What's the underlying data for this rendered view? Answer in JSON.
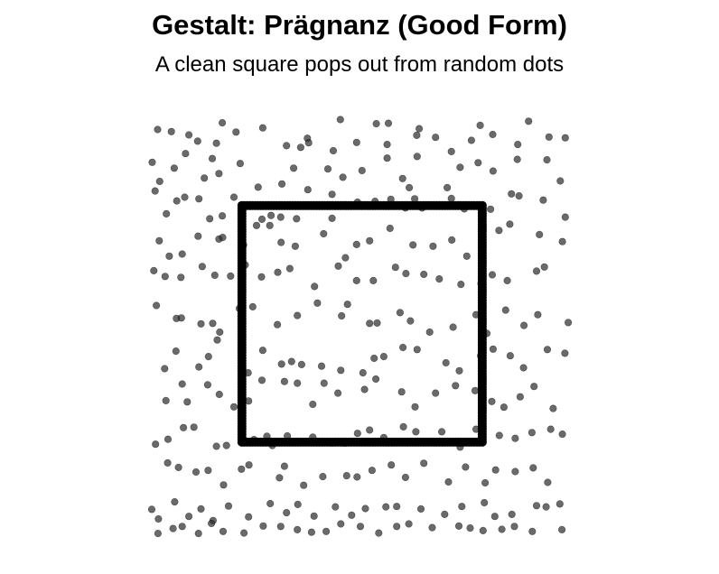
{
  "header": {
    "title": "Gestalt: Prägnanz (Good Form)",
    "subtitle": "A clean square pops out from random dots"
  },
  "colors": {
    "noise_dot": "#2b2b2b",
    "square_dot": "#000000",
    "background": "#ffffff"
  },
  "chart_data": {
    "type": "scatter",
    "title": "Gestalt: Prägnanz (Good Form)",
    "subtitle": "A clean square pops out from random dots",
    "xlabel": "",
    "ylabel": "",
    "xlim": [
      0,
      1
    ],
    "ylim": [
      0,
      1
    ],
    "grid": false,
    "axes_visible": false,
    "series": [
      {
        "role": "noise",
        "opacity": 0.7,
        "x": [
          0.016,
          0.014,
          0.047,
          0.089,
          0.11,
          0.155,
          0.169,
          0.202,
          0.266,
          0.323,
          0.357,
          0.373,
          0.376,
          0.435,
          0.452,
          0.491,
          0.538,
          0.564,
          0.567,
          0.635,
          0.641,
          0.68,
          0.718,
          0.766,
          0.787,
          0.817,
          0.877,
          0.903,
          0.952,
          0.991,
          0.001,
          0.019,
          0.054,
          0.081,
          0.126,
          0.145,
          0.161,
          0.212,
          0.255,
          0.312,
          0.34,
          0.374,
          0.422,
          0.458,
          0.504,
          0.564,
          0.601,
          0.617,
          0.636,
          0.708,
          0.739,
          0.782,
          0.818,
          0.876,
          0.947,
          0.979,
          0.008,
          0.035,
          0.06,
          0.079,
          0.113,
          0.139,
          0.169,
          0.197,
          0.264,
          0.286,
          0.309,
          0.347,
          0.432,
          0.432,
          0.493,
          0.535,
          0.573,
          0.608,
          0.63,
          0.648,
          0.718,
          0.749,
          0.812,
          0.862,
          0.88,
          0.938,
          0.991,
          0.018,
          0.042,
          0.073,
          0.111,
          0.161,
          0.17,
          0.22,
          0.251,
          0.283,
          0.31,
          0.344,
          0.412,
          0.464,
          0.491,
          0.522,
          0.571,
          0.626,
          0.674,
          0.719,
          0.755,
          0.793,
          0.832,
          0.858,
          0.929,
          0.984,
          0.005,
          0.032,
          0.07,
          0.121,
          0.151,
          0.189,
          0.224,
          0.263,
          0.302,
          0.331,
          0.39,
          0.447,
          0.491,
          0.531,
          0.584,
          0.609,
          0.652,
          0.689,
          0.741,
          0.789,
          0.816,
          0.852,
          0.922,
          0.941,
          0.011,
          0.059,
          0.071,
          0.118,
          0.146,
          0.163,
          0.21,
          0.242,
          0.301,
          0.349,
          0.397,
          0.455,
          0.469,
          0.522,
          0.54,
          0.595,
          0.62,
          0.666,
          0.722,
          0.777,
          0.803,
          0.848,
          0.892,
          0.925,
          0.998,
          0.031,
          0.058,
          0.113,
          0.136,
          0.157,
          0.231,
          0.266,
          0.311,
          0.335,
          0.359,
          0.407,
          0.453,
          0.506,
          0.533,
          0.556,
          0.602,
          0.636,
          0.705,
          0.737,
          0.788,
          0.818,
          0.859,
          0.891,
          0.948,
          0.99,
          0.034,
          0.073,
          0.085,
          0.134,
          0.162,
          0.197,
          0.232,
          0.264,
          0.318,
          0.349,
          0.386,
          0.413,
          0.446,
          0.51,
          0.537,
          0.599,
          0.631,
          0.68,
          0.728,
          0.775,
          0.815,
          0.844,
          0.883,
          0.916,
          0.962,
          0.009,
          0.039,
          0.076,
          0.101,
          0.155,
          0.179,
          0.245,
          0.276,
          0.289,
          0.325,
          0.386,
          0.433,
          0.493,
          0.522,
          0.556,
          0.603,
          0.633,
          0.695,
          0.739,
          0.777,
          0.833,
          0.871,
          0.911,
          0.956,
          0.984,
          0.038,
          0.064,
          0.106,
          0.135,
          0.172,
          0.215,
          0.233,
          0.306,
          0.318,
          0.364,
          0.41,
          0.467,
          0.492,
          0.528,
          0.574,
          0.608,
          0.652,
          0.711,
          0.752,
          0.799,
          0.824,
          0.871,
          0.914,
          0.949,
          0.0,
          0.055,
          0.089,
          0.118,
          0.147,
          0.184,
          0.232,
          0.284,
          0.323,
          0.35,
          0.389,
          0.44,
          0.479,
          0.512,
          0.561,
          0.587,
          0.645,
          0.702,
          0.743,
          0.797,
          0.822,
          0.863,
          0.922,
          0.945,
          0.978,
          0.015,
          0.051,
          0.073,
          0.112,
          0.143,
          0.171,
          0.221,
          0.267,
          0.309,
          0.349,
          0.383,
          0.418,
          0.453,
          0.5,
          0.544,
          0.587,
          0.616,
          0.672,
          0.736,
          0.763,
          0.794,
          0.839,
          0.869,
          0.912,
          0.983
        ],
        "y": [
          0.037,
          0.975,
          0.97,
          0.962,
          0.947,
          0.942,
          0.991,
          0.969,
          0.979,
          0.936,
          0.932,
          0.954,
          0.943,
          0.924,
          0.999,
          0.944,
          0.989,
          0.939,
          0.99,
          0.961,
          0.977,
          0.956,
          0.922,
          0.949,
          0.985,
          0.963,
          0.939,
          0.995,
          0.957,
          0.955,
          0.896,
          0.85,
          0.882,
          0.917,
          0.858,
          0.905,
          0.869,
          0.893,
          0.836,
          0.844,
          0.882,
          0.83,
          0.88,
          0.86,
          0.876,
          0.906,
          0.857,
          0.835,
          0.91,
          0.835,
          0.884,
          0.895,
          0.875,
          0.903,
          0.902,
          0.851,
          0.827,
          0.772,
          0.803,
          0.812,
          0.808,
          0.76,
          0.767,
          0.812,
          0.759,
          0.768,
          0.764,
          0.76,
          0.819,
          0.761,
          0.8,
          0.802,
          0.807,
          0.786,
          0.808,
          0.786,
          0.809,
          0.784,
          0.783,
          0.82,
          0.815,
          0.805,
          0.764,
          0.707,
          0.67,
          0.675,
          0.718,
          0.711,
          0.715,
          0.697,
          0.744,
          0.744,
          0.703,
          0.694,
          0.724,
          0.666,
          0.698,
          0.707,
          0.737,
          0.697,
          0.694,
          0.709,
          0.67,
          0.7,
          0.732,
          0.747,
          0.722,
          0.705,
          0.635,
          0.621,
          0.619,
          0.645,
          0.624,
          0.622,
          0.649,
          0.62,
          0.631,
          0.64,
          0.597,
          0.646,
          0.611,
          0.611,
          0.643,
          0.628,
          0.626,
          0.615,
          0.602,
          0.604,
          0.625,
          0.611,
          0.634,
          0.644,
          0.551,
          0.52,
          0.521,
          0.507,
          0.508,
          0.487,
          0.544,
          0.548,
          0.505,
          0.527,
          0.557,
          0.526,
          0.554,
          0.508,
          0.509,
          0.534,
          0.514,
          0.487,
          0.499,
          0.529,
          0.484,
          0.54,
          0.503,
          0.529,
          0.51,
          0.399,
          0.441,
          0.403,
          0.428,
          0.468,
          0.389,
          0.443,
          0.41,
          0.416,
          0.409,
          0.405,
          0.395,
          0.389,
          0.424,
          0.428,
          0.45,
          0.445,
          0.413,
          0.394,
          0.43,
          0.446,
          0.43,
          0.401,
          0.445,
          0.436,
          0.322,
          0.362,
          0.319,
          0.36,
          0.337,
          0.307,
          0.321,
          0.371,
          0.368,
          0.364,
          0.313,
          0.364,
          0.34,
          0.349,
          0.374,
          0.343,
          0.307,
          0.34,
          0.358,
          0.346,
          0.32,
          0.306,
          0.331,
          0.356,
          0.303,
          0.217,
          0.229,
          0.257,
          0.258,
          0.212,
          0.214,
          0.228,
          0.236,
          0.214,
          0.237,
          0.234,
          0.22,
          0.243,
          0.251,
          0.233,
          0.259,
          0.247,
          0.247,
          0.21,
          0.253,
          0.238,
          0.231,
          0.245,
          0.253,
          0.241,
          0.172,
          0.161,
          0.15,
          0.154,
          0.119,
          0.157,
          0.167,
          0.136,
          0.164,
          0.118,
          0.139,
          0.141,
          0.138,
          0.154,
          0.167,
          0.137,
          0.171,
          0.126,
          0.162,
          0.124,
          0.155,
          0.151,
          0.16,
          0.125,
          0.06,
          0.078,
          0.043,
          0.061,
          0.033,
          0.068,
          0.042,
          0.074,
          0.052,
          0.072,
          0.044,
          0.066,
          0.046,
          0.062,
          0.066,
          0.067,
          0.061,
          0.048,
          0.067,
          0.076,
          0.043,
          0.048,
          0.069,
          0.066,
          0.073,
          0.002,
          0.014,
          0.019,
          0.002,
          0.026,
          0.007,
          0.003,
          0.02,
          0.019,
          0.011,
          0.005,
          0.007,
          0.025,
          0.019,
          0.003,
          0.019,
          0.025,
          0.016,
          0.02,
          0.015,
          0.009,
          0.012,
          0.019,
          0.007,
          0.011
        ]
      },
      {
        "role": "square",
        "shape": "square-outline",
        "corners": [
          [
            0.216,
            0.222
          ],
          [
            0.792,
            0.222
          ],
          [
            0.792,
            0.792
          ],
          [
            0.216,
            0.792
          ]
        ],
        "points_per_side": 90
      }
    ]
  }
}
